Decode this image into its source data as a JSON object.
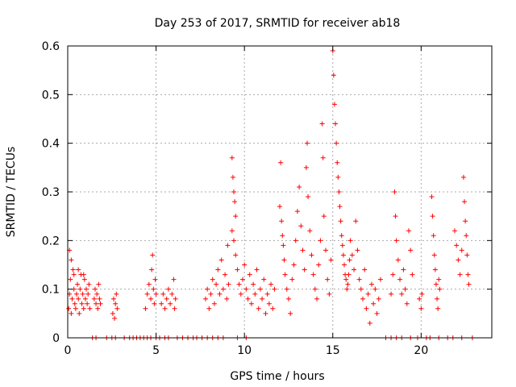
{
  "chart_data": {
    "type": "scatter",
    "title": "Day 253 of 2017, SRMTID for receiver ab18",
    "xlabel": "GPS time / hours",
    "ylabel": "SRMTID / TECUs",
    "xlim": [
      0,
      24
    ],
    "ylim": [
      0,
      0.6
    ],
    "x_ticks": [
      0,
      5,
      10,
      15,
      20
    ],
    "y_ticks": [
      0,
      0.1,
      0.2,
      0.3,
      0.4,
      0.5,
      0.6
    ],
    "x_tick_labels": [
      "0",
      "5",
      "10",
      "15",
      "20"
    ],
    "y_tick_labels": [
      "0",
      "0.1",
      "0.2",
      "0.3",
      "0.4",
      "0.5",
      "0.6"
    ],
    "grid": true,
    "marker": "plus",
    "color": "#ff0000",
    "series": [
      {
        "name": "SRMTID",
        "points": [
          [
            0.05,
            0.06
          ],
          [
            0.1,
            0.09
          ],
          [
            0.15,
            0.12
          ],
          [
            0.2,
            0.05
          ],
          [
            0.25,
            0.08
          ],
          [
            0.3,
            0.14
          ],
          [
            0.35,
            0.1
          ],
          [
            0.4,
            0.07
          ],
          [
            0.45,
            0.06
          ],
          [
            0.5,
            0.09
          ],
          [
            0.55,
            0.11
          ],
          [
            0.6,
            0.08
          ],
          [
            0.65,
            0.05
          ],
          [
            0.7,
            0.1
          ],
          [
            0.75,
            0.13
          ],
          [
            0.8,
            0.07
          ],
          [
            0.85,
            0.09
          ],
          [
            0.9,
            0.06
          ],
          [
            0.95,
            0.12
          ],
          [
            1.0,
            0.08
          ],
          [
            1.05,
            0.1
          ],
          [
            1.1,
            0.07
          ],
          [
            1.15,
            0.09
          ],
          [
            1.2,
            0.11
          ],
          [
            1.25,
            0.06
          ],
          [
            0.1,
            0.18
          ],
          [
            0.2,
            0.16
          ],
          [
            0.35,
            0.13
          ],
          [
            0.6,
            0.14
          ],
          [
            0.9,
            0.13
          ],
          [
            1.5,
            0.08
          ],
          [
            1.55,
            0.1
          ],
          [
            1.6,
            0.07
          ],
          [
            1.65,
            0.09
          ],
          [
            1.7,
            0.06
          ],
          [
            1.75,
            0.11
          ],
          [
            1.8,
            0.08
          ],
          [
            1.85,
            0.07
          ],
          [
            2.55,
            0.05
          ],
          [
            2.6,
            0.08
          ],
          [
            2.65,
            0.04
          ],
          [
            2.7,
            0.07
          ],
          [
            2.75,
            0.09
          ],
          [
            2.8,
            0.06
          ],
          [
            4.4,
            0.06
          ],
          [
            4.5,
            0.09
          ],
          [
            4.6,
            0.11
          ],
          [
            4.7,
            0.08
          ],
          [
            4.75,
            0.14
          ],
          [
            4.8,
            0.17
          ],
          [
            4.85,
            0.1
          ],
          [
            4.9,
            0.07
          ],
          [
            4.95,
            0.12
          ],
          [
            5.0,
            0.09
          ],
          [
            5.3,
            0.07
          ],
          [
            5.4,
            0.09
          ],
          [
            5.5,
            0.06
          ],
          [
            5.6,
            0.08
          ],
          [
            5.7,
            0.1
          ],
          [
            5.8,
            0.07
          ],
          [
            5.9,
            0.09
          ],
          [
            6.0,
            0.12
          ],
          [
            6.05,
            0.06
          ],
          [
            6.1,
            0.08
          ],
          [
            7.8,
            0.08
          ],
          [
            7.9,
            0.1
          ],
          [
            8.0,
            0.06
          ],
          [
            8.1,
            0.09
          ],
          [
            8.2,
            0.12
          ],
          [
            8.3,
            0.07
          ],
          [
            8.4,
            0.11
          ],
          [
            8.5,
            0.14
          ],
          [
            8.6,
            0.09
          ],
          [
            8.7,
            0.16
          ],
          [
            8.8,
            0.1
          ],
          [
            8.9,
            0.13
          ],
          [
            9.0,
            0.08
          ],
          [
            9.05,
            0.19
          ],
          [
            9.1,
            0.11
          ],
          [
            9.3,
            0.37
          ],
          [
            9.35,
            0.33
          ],
          [
            9.4,
            0.3
          ],
          [
            9.45,
            0.28
          ],
          [
            9.5,
            0.25
          ],
          [
            9.3,
            0.22
          ],
          [
            9.4,
            0.2
          ],
          [
            9.5,
            0.17
          ],
          [
            9.6,
            0.14
          ],
          [
            9.7,
            0.11
          ],
          [
            9.8,
            0.09
          ],
          [
            9.9,
            0.12
          ],
          [
            10.0,
            0.15
          ],
          [
            10.1,
            0.1
          ],
          [
            10.2,
            0.08
          ],
          [
            10.3,
            0.13
          ],
          [
            10.4,
            0.07
          ],
          [
            10.5,
            0.11
          ],
          [
            10.6,
            0.09
          ],
          [
            10.7,
            0.14
          ],
          [
            10.8,
            0.06
          ],
          [
            10.9,
            0.1
          ],
          [
            11.0,
            0.08
          ],
          [
            11.1,
            0.12
          ],
          [
            11.2,
            0.05
          ],
          [
            11.3,
            0.09
          ],
          [
            11.4,
            0.07
          ],
          [
            11.5,
            0.11
          ],
          [
            11.6,
            0.06
          ],
          [
            11.7,
            0.1
          ],
          [
            12.0,
            0.27
          ],
          [
            12.05,
            0.36
          ],
          [
            12.1,
            0.24
          ],
          [
            12.15,
            0.21
          ],
          [
            12.2,
            0.19
          ],
          [
            12.25,
            0.16
          ],
          [
            12.3,
            0.13
          ],
          [
            12.4,
            0.1
          ],
          [
            12.5,
            0.08
          ],
          [
            12.6,
            0.05
          ],
          [
            12.7,
            0.12
          ],
          [
            12.8,
            0.15
          ],
          [
            12.9,
            0.2
          ],
          [
            13.0,
            0.26
          ],
          [
            13.1,
            0.31
          ],
          [
            13.2,
            0.23
          ],
          [
            13.3,
            0.18
          ],
          [
            13.4,
            0.14
          ],
          [
            13.5,
            0.35
          ],
          [
            13.55,
            0.4
          ],
          [
            13.6,
            0.29
          ],
          [
            13.7,
            0.22
          ],
          [
            13.8,
            0.17
          ],
          [
            13.9,
            0.13
          ],
          [
            14.0,
            0.1
          ],
          [
            14.1,
            0.08
          ],
          [
            14.2,
            0.15
          ],
          [
            14.3,
            0.2
          ],
          [
            14.4,
            0.44
          ],
          [
            14.45,
            0.37
          ],
          [
            14.5,
            0.25
          ],
          [
            14.6,
            0.18
          ],
          [
            14.7,
            0.12
          ],
          [
            14.8,
            0.09
          ],
          [
            14.9,
            0.16
          ],
          [
            15.0,
            0.59
          ],
          [
            15.05,
            0.54
          ],
          [
            15.1,
            0.48
          ],
          [
            15.15,
            0.44
          ],
          [
            15.2,
            0.4
          ],
          [
            15.25,
            0.36
          ],
          [
            15.3,
            0.33
          ],
          [
            15.35,
            0.3
          ],
          [
            15.4,
            0.27
          ],
          [
            15.45,
            0.24
          ],
          [
            15.5,
            0.21
          ],
          [
            15.55,
            0.19
          ],
          [
            15.6,
            0.17
          ],
          [
            15.65,
            0.15
          ],
          [
            15.7,
            0.13
          ],
          [
            15.75,
            0.12
          ],
          [
            15.8,
            0.1
          ],
          [
            15.85,
            0.11
          ],
          [
            15.9,
            0.13
          ],
          [
            15.95,
            0.16
          ],
          [
            16.0,
            0.2
          ],
          [
            16.1,
            0.17
          ],
          [
            16.2,
            0.14
          ],
          [
            16.3,
            0.24
          ],
          [
            16.4,
            0.18
          ],
          [
            16.5,
            0.12
          ],
          [
            16.6,
            0.1
          ],
          [
            16.7,
            0.08
          ],
          [
            16.8,
            0.14
          ],
          [
            16.9,
            0.06
          ],
          [
            17.0,
            0.09
          ],
          [
            17.1,
            0.03
          ],
          [
            17.2,
            0.11
          ],
          [
            17.3,
            0.07
          ],
          [
            17.4,
            0.1
          ],
          [
            17.5,
            0.05
          ],
          [
            17.6,
            0.08
          ],
          [
            17.7,
            0.12
          ],
          [
            18.3,
            0.09
          ],
          [
            18.4,
            0.13
          ],
          [
            18.5,
            0.3
          ],
          [
            18.55,
            0.25
          ],
          [
            18.6,
            0.2
          ],
          [
            18.7,
            0.16
          ],
          [
            18.8,
            0.12
          ],
          [
            18.9,
            0.09
          ],
          [
            19.0,
            0.14
          ],
          [
            19.1,
            0.1
          ],
          [
            19.2,
            0.07
          ],
          [
            19.3,
            0.22
          ],
          [
            19.4,
            0.18
          ],
          [
            19.5,
            0.13
          ],
          [
            19.9,
            0.08
          ],
          [
            20.0,
            0.06
          ],
          [
            20.05,
            0.09
          ],
          [
            20.6,
            0.29
          ],
          [
            20.65,
            0.25
          ],
          [
            20.7,
            0.21
          ],
          [
            20.75,
            0.17
          ],
          [
            20.8,
            0.14
          ],
          [
            20.85,
            0.11
          ],
          [
            20.9,
            0.08
          ],
          [
            20.95,
            0.06
          ],
          [
            21.0,
            0.12
          ],
          [
            21.05,
            0.1
          ],
          [
            21.9,
            0.22
          ],
          [
            22.0,
            0.19
          ],
          [
            22.1,
            0.16
          ],
          [
            22.2,
            0.13
          ],
          [
            22.3,
            0.18
          ],
          [
            22.4,
            0.33
          ],
          [
            22.45,
            0.28
          ],
          [
            22.5,
            0.24
          ],
          [
            22.55,
            0.21
          ],
          [
            22.6,
            0.17
          ],
          [
            22.65,
            0.13
          ],
          [
            22.7,
            0.11
          ],
          [
            1.4,
            0
          ],
          [
            1.6,
            0
          ],
          [
            2.2,
            0
          ],
          [
            2.5,
            0
          ],
          [
            2.7,
            0
          ],
          [
            3.2,
            0
          ],
          [
            3.5,
            0
          ],
          [
            3.7,
            0
          ],
          [
            3.9,
            0
          ],
          [
            4.1,
            0
          ],
          [
            4.3,
            0
          ],
          [
            4.5,
            0
          ],
          [
            4.7,
            0
          ],
          [
            5.0,
            0
          ],
          [
            5.2,
            0
          ],
          [
            5.5,
            0
          ],
          [
            5.7,
            0
          ],
          [
            6.2,
            0
          ],
          [
            6.5,
            0
          ],
          [
            6.8,
            0
          ],
          [
            7.1,
            0
          ],
          [
            7.3,
            0
          ],
          [
            7.6,
            0
          ],
          [
            7.9,
            0
          ],
          [
            8.2,
            0
          ],
          [
            8.5,
            0
          ],
          [
            8.8,
            0
          ],
          [
            9.6,
            0
          ],
          [
            10.1,
            0
          ],
          [
            18.0,
            0
          ],
          [
            18.3,
            0
          ],
          [
            18.6,
            0
          ],
          [
            18.9,
            0
          ],
          [
            19.4,
            0
          ],
          [
            19.8,
            0
          ],
          [
            20.3,
            0
          ],
          [
            20.5,
            0
          ],
          [
            21.0,
            0
          ],
          [
            21.5,
            0
          ],
          [
            21.8,
            0
          ],
          [
            22.3,
            0
          ],
          [
            22.9,
            0
          ]
        ]
      }
    ]
  }
}
